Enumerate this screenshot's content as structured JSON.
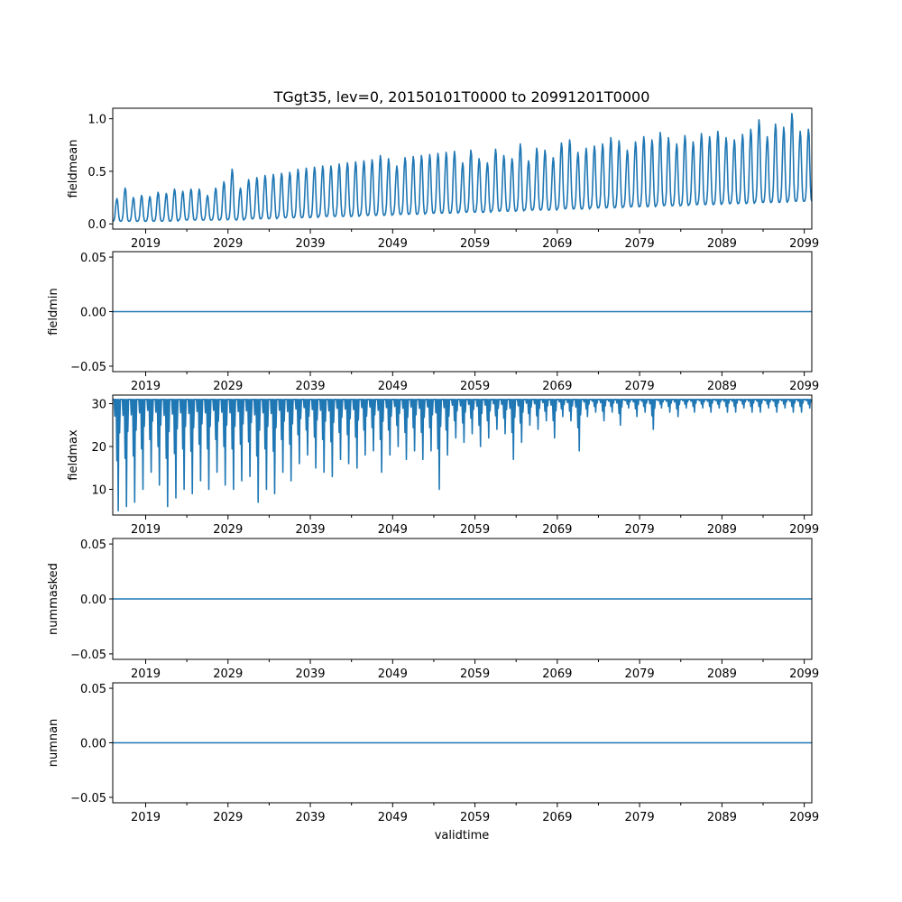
{
  "chart_data": {
    "type": "line",
    "title": "TGgt35, lev=0, 20150101T0000 to 20991201T0000",
    "xlabel": "validtime",
    "x_start": "2015-01",
    "x_end": "2099-12",
    "x_major_ticks": [
      2019,
      2029,
      2039,
      2049,
      2059,
      2069,
      2079,
      2089,
      2099
    ],
    "x_major_tick_labels": [
      "2019",
      "2029",
      "2039",
      "2049",
      "2059",
      "2069",
      "2079",
      "2089",
      "2099"
    ],
    "x_minor_ticks": [
      2024,
      2034,
      2044,
      2054,
      2064,
      2074,
      2084,
      2094
    ],
    "series_color": "#1f77b4",
    "panels": [
      {
        "name": "fieldmean",
        "ylabel": "fieldmean",
        "ylim": [
          -0.05,
          1.1
        ],
        "yticks": [
          0.0,
          0.5,
          1.0
        ],
        "ytick_labels": [
          "0.0",
          "0.5",
          "1.0"
        ],
        "annual_peaks": [
          0.24,
          0.34,
          0.25,
          0.27,
          0.26,
          0.3,
          0.29,
          0.33,
          0.31,
          0.33,
          0.33,
          0.27,
          0.34,
          0.4,
          0.52,
          0.34,
          0.42,
          0.44,
          0.46,
          0.47,
          0.48,
          0.49,
          0.52,
          0.53,
          0.54,
          0.55,
          0.55,
          0.57,
          0.58,
          0.59,
          0.6,
          0.61,
          0.65,
          0.62,
          0.55,
          0.63,
          0.64,
          0.65,
          0.66,
          0.67,
          0.68,
          0.69,
          0.58,
          0.7,
          0.62,
          0.58,
          0.71,
          0.65,
          0.62,
          0.76,
          0.6,
          0.72,
          0.7,
          0.63,
          0.77,
          0.8,
          0.68,
          0.72,
          0.74,
          0.76,
          0.82,
          0.79,
          0.7,
          0.78,
          0.83,
          0.8,
          0.87,
          0.82,
          0.76,
          0.84,
          0.78,
          0.86,
          0.83,
          0.88,
          0.82,
          0.8,
          0.85,
          0.9,
          0.99,
          0.83,
          0.95,
          0.92,
          1.05,
          0.88,
          0.9
        ],
        "annual_baseline": [
          0.02,
          0.02,
          0.02,
          0.02,
          0.02,
          0.02,
          0.02,
          0.02,
          0.03,
          0.03,
          0.03,
          0.03,
          0.03,
          0.03,
          0.03,
          0.03,
          0.04,
          0.04,
          0.04,
          0.04,
          0.05,
          0.05,
          0.05,
          0.05,
          0.05,
          0.06,
          0.06,
          0.06,
          0.06,
          0.06,
          0.07,
          0.07,
          0.07,
          0.07,
          0.08,
          0.08,
          0.08,
          0.08,
          0.09,
          0.09,
          0.09,
          0.09,
          0.1,
          0.1,
          0.1,
          0.1,
          0.11,
          0.11,
          0.11,
          0.11,
          0.12,
          0.12,
          0.12,
          0.12,
          0.13,
          0.13,
          0.13,
          0.13,
          0.14,
          0.14,
          0.14,
          0.14,
          0.15,
          0.15,
          0.15,
          0.15,
          0.16,
          0.16,
          0.16,
          0.16,
          0.17,
          0.17,
          0.17,
          0.17,
          0.18,
          0.18,
          0.18,
          0.18,
          0.19,
          0.19,
          0.19,
          0.19,
          0.2,
          0.2,
          0.2
        ]
      },
      {
        "name": "fieldmin",
        "ylabel": "fieldmin",
        "ylim": [
          -0.055,
          0.055
        ],
        "yticks": [
          -0.05,
          0.0,
          0.05
        ],
        "ytick_labels": [
          "−0.05",
          "0.00",
          "0.05"
        ],
        "constant": 0.0
      },
      {
        "name": "fieldmax",
        "ylabel": "fieldmax",
        "ylim": [
          4,
          32
        ],
        "yticks": [
          10,
          20,
          30
        ],
        "ytick_labels": [
          "10",
          "20",
          "30"
        ],
        "annual_minima": [
          5,
          6,
          7,
          10,
          14,
          11,
          6,
          8,
          10,
          9,
          12,
          10,
          14,
          11,
          10,
          12,
          13,
          7,
          10,
          9,
          14,
          12,
          16,
          18,
          15,
          14,
          13,
          17,
          16,
          15,
          18,
          19,
          14,
          18,
          20,
          17,
          19,
          17,
          19,
          10,
          18,
          22,
          21,
          23,
          20,
          22,
          24,
          23,
          17,
          21,
          25,
          24,
          26,
          22,
          27,
          26,
          19,
          27,
          28,
          26,
          28,
          25,
          29,
          27,
          28,
          24,
          29,
          28,
          27,
          29,
          28,
          29,
          28,
          29,
          28,
          28,
          29,
          28,
          28,
          29,
          28,
          29,
          28,
          28,
          29
        ]
      },
      {
        "name": "nummasked",
        "ylabel": "nummasked",
        "ylim": [
          -0.055,
          0.055
        ],
        "yticks": [
          -0.05,
          0.0,
          0.05
        ],
        "ytick_labels": [
          "−0.05",
          "0.00",
          "0.05"
        ],
        "constant": 0.0
      },
      {
        "name": "numnan",
        "ylabel": "numnan",
        "ylim": [
          -0.055,
          0.055
        ],
        "yticks": [
          -0.05,
          0.0,
          0.05
        ],
        "ytick_labels": [
          "−0.05",
          "0.00",
          "0.05"
        ],
        "constant": 0.0
      }
    ]
  }
}
